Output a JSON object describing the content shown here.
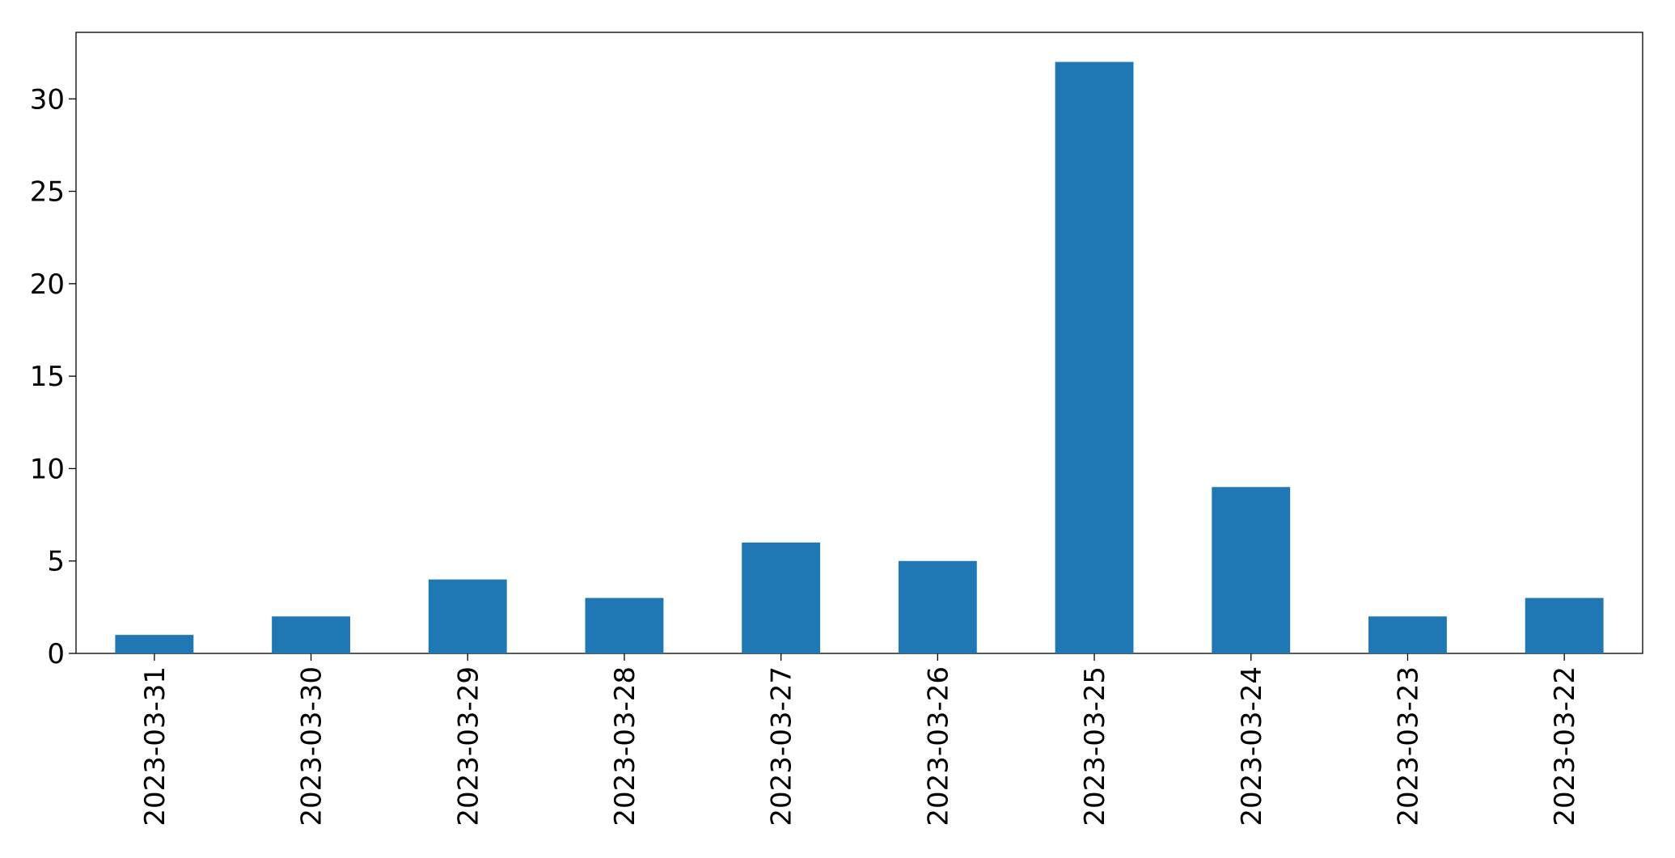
{
  "chart_data": {
    "type": "bar",
    "categories": [
      "2023-03-31",
      "2023-03-30",
      "2023-03-29",
      "2023-03-28",
      "2023-03-27",
      "2023-03-26",
      "2023-03-25",
      "2023-03-24",
      "2023-03-23",
      "2023-03-22"
    ],
    "values": [
      1,
      2,
      4,
      3,
      6,
      5,
      32,
      9,
      2,
      3
    ],
    "color": "#1f77b4",
    "ylim": [
      0,
      33.6
    ],
    "yticks": [
      0,
      5,
      10,
      15,
      20,
      25,
      30
    ],
    "grid": false
  }
}
